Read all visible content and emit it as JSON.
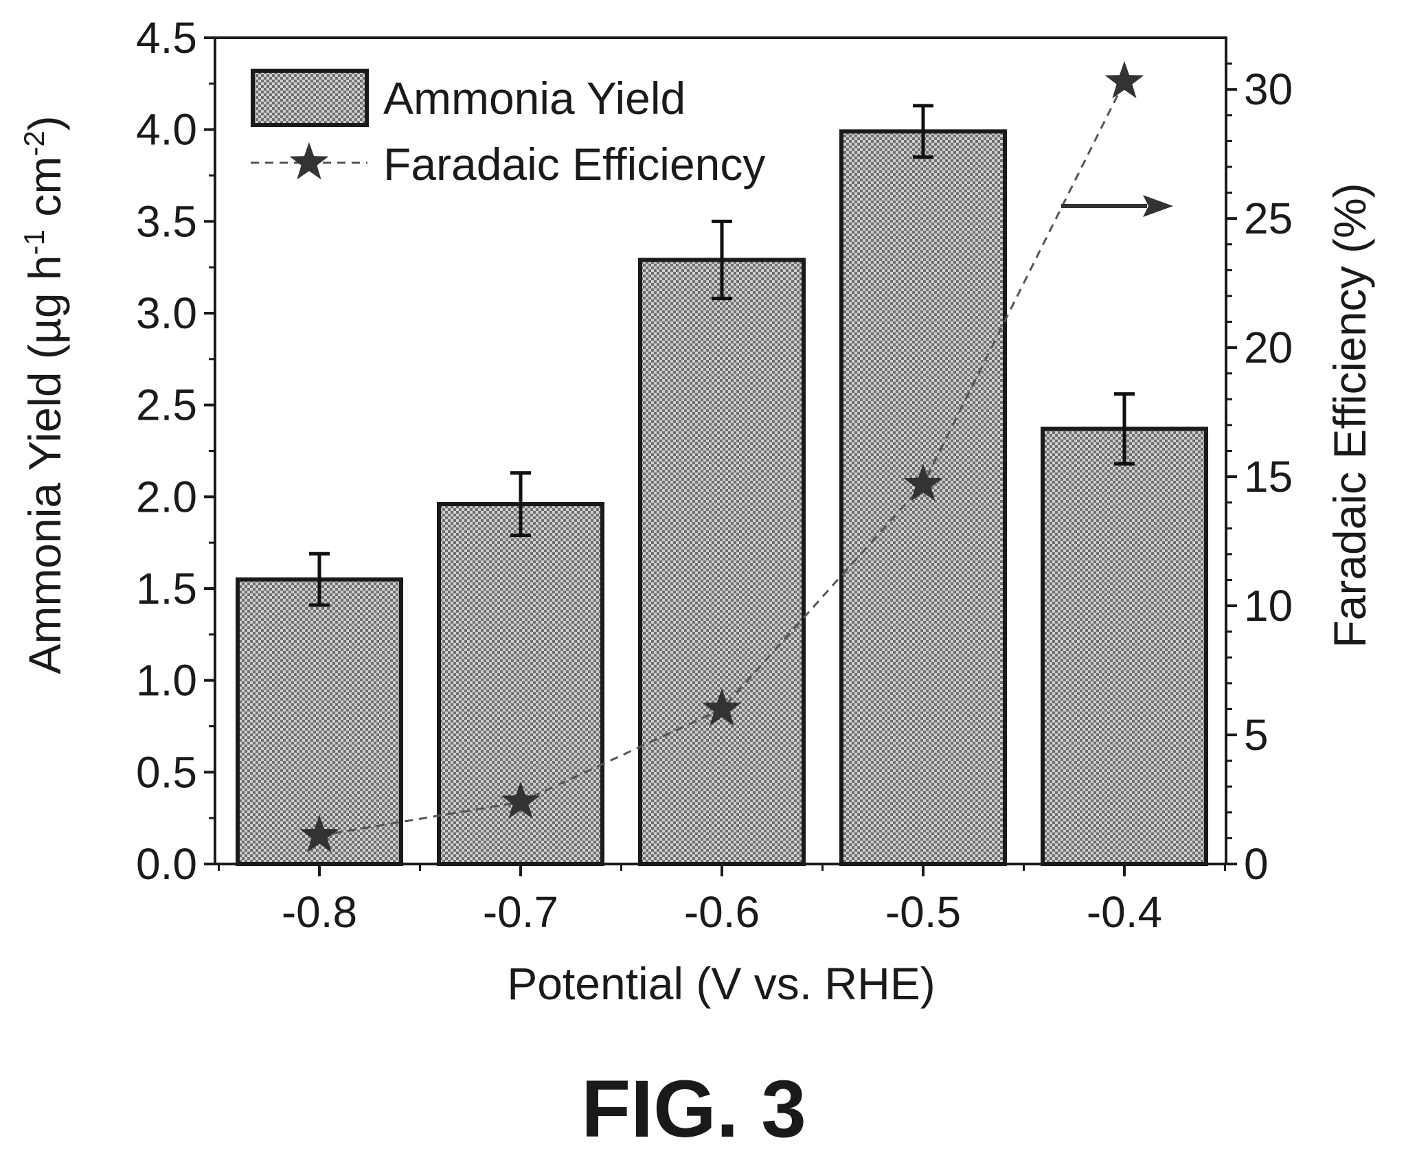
{
  "chart_data": {
    "type": "bar",
    "categories": [
      "-0.8",
      "-0.7",
      "-0.6",
      "-0.5",
      "-0.4"
    ],
    "series": [
      {
        "name": "Ammonia Yield",
        "type": "bar",
        "axis": "left",
        "values": [
          1.55,
          1.96,
          3.29,
          3.99,
          2.37
        ],
        "error": [
          0.14,
          0.17,
          0.21,
          0.14,
          0.19
        ]
      },
      {
        "name": "Faradaic Efficiency",
        "type": "line",
        "axis": "right",
        "marker": "star",
        "line_style": "dashed",
        "values": [
          1.1,
          2.4,
          6.0,
          14.7,
          30.3
        ]
      }
    ],
    "xlabel": "Potential (V vs. RHE)",
    "ylabel_left": {
      "main": "Ammonia Yield (µg h",
      "sup1": "-1",
      "mid": " cm",
      "sup2": "-2",
      "end": ")"
    },
    "ylabel_right": "Faradaic Efficiency (%)",
    "ylim_left": [
      0,
      4.5
    ],
    "ylim_right": [
      0,
      32
    ],
    "yticks_left": [
      "0.0",
      "0.5",
      "1.0",
      "1.5",
      "2.0",
      "2.5",
      "3.0",
      "3.5",
      "4.0",
      "4.5"
    ],
    "yticks_right": [
      "0",
      "5",
      "10",
      "15",
      "20",
      "25",
      "30"
    ],
    "legend_position": "top-left",
    "grid": false,
    "colors": {
      "bar_fill": "#9a9a9a",
      "bar_edge": "#1a1a1a",
      "line": "#555555",
      "marker": "#333333"
    }
  },
  "figure_label": "FIG. 3"
}
